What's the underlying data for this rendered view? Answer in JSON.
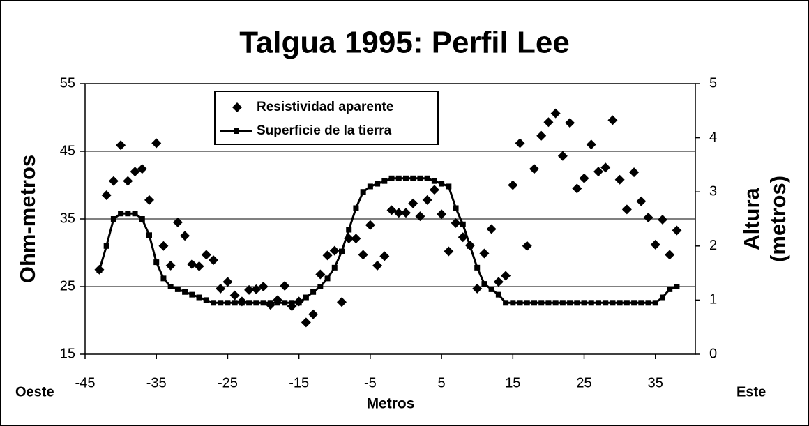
{
  "chart_data": {
    "type": "scatter-line",
    "title": "Talgua 1995: Perfil Lee",
    "x_label": "Metros",
    "y_label": "Ohm-metros",
    "y2_label": "Altura (metros)",
    "annotations": [
      "Oeste",
      "Este"
    ],
    "xlim": [
      -45,
      40.6
    ],
    "xticks": [
      -45,
      -35,
      -25,
      -15,
      -5,
      5,
      15,
      25,
      35
    ],
    "ylim": [
      15,
      55
    ],
    "yticks": [
      15,
      25,
      35,
      45,
      55
    ],
    "y2lim": [
      0,
      5
    ],
    "y2ticks": [
      0,
      1,
      2,
      3,
      4,
      5
    ],
    "grid": true,
    "legend": "top",
    "x": [
      -43,
      -42,
      -41,
      -40,
      -39,
      -38,
      -37,
      -36,
      -35,
      -34,
      -33,
      -32,
      -31,
      -30,
      -29,
      -28,
      -27,
      -26,
      -25,
      -24,
      -23,
      -22,
      -21,
      -20,
      -19,
      -18,
      -17,
      -16,
      -15,
      -14,
      -13,
      -12,
      -11,
      -10,
      -9,
      -8,
      -7,
      -6,
      -5,
      -4,
      -3,
      -2,
      -1,
      0,
      1,
      2,
      3,
      4,
      5,
      6,
      7,
      8,
      9,
      10,
      11,
      12,
      13,
      14,
      15,
      16,
      17,
      18,
      19,
      20,
      21,
      22,
      23,
      24,
      25,
      26,
      27,
      28,
      29,
      30,
      31,
      32,
      33,
      34,
      35,
      36,
      37,
      38
    ],
    "series": [
      {
        "name": "Resistividad aparente",
        "color": "#000000",
        "kind": "scatter",
        "values": [
          27.5,
          38.5,
          40.6,
          45.9,
          40.6,
          42,
          42.4,
          37.8,
          46.2,
          31,
          28.1,
          34.5,
          32.5,
          28.3,
          28,
          29.7,
          28.9,
          24.7,
          25.7,
          23.7,
          22.8,
          24.5,
          24.6,
          25,
          22.3,
          23,
          25.1,
          22.1,
          22.8,
          19.7,
          20.9,
          26.8,
          29.6,
          30.3,
          22.7,
          32.1,
          32.1,
          29.7,
          34.1,
          28.1,
          29.5,
          36.3,
          35.9,
          35.9,
          37.3,
          35.4,
          37.8,
          39.3,
          35.7,
          30.2,
          34.4,
          32.3,
          31.1,
          24.7,
          29.9,
          33.5,
          25.7,
          26.6,
          40,
          46.2,
          31,
          42.4,
          47.3,
          49.3,
          50.6,
          44.3,
          49.2,
          39.5,
          41,
          46,
          42,
          42.6,
          49.6,
          40.8,
          36.4,
          41.9,
          37.6,
          35.2,
          31.2,
          34.9,
          29.7,
          33.3
        ]
      },
      {
        "name": "Superficie de la tierra",
        "color": "#000000",
        "kind": "line",
        "axis": "y2",
        "values": [
          1.55,
          2.0,
          2.5,
          2.6,
          2.6,
          2.6,
          2.5,
          2.2,
          1.7,
          1.4,
          1.25,
          1.2,
          1.15,
          1.1,
          1.05,
          1.0,
          0.95,
          0.95,
          0.95,
          0.95,
          0.95,
          0.95,
          0.95,
          0.95,
          0.95,
          0.95,
          0.95,
          0.95,
          0.95,
          1.05,
          1.15,
          1.25,
          1.4,
          1.6,
          1.9,
          2.3,
          2.7,
          3.0,
          3.1,
          3.15,
          3.2,
          3.25,
          3.25,
          3.25,
          3.25,
          3.25,
          3.25,
          3.2,
          3.15,
          3.1,
          2.7,
          2.4,
          2.0,
          1.6,
          1.3,
          1.2,
          1.1,
          0.95,
          0.95,
          0.95,
          0.95,
          0.95,
          0.95,
          0.95,
          0.95,
          0.95,
          0.95,
          0.95,
          0.95,
          0.95,
          0.95,
          0.95,
          0.95,
          0.95,
          0.95,
          0.95,
          0.95,
          0.95,
          0.95,
          1.05,
          1.2,
          1.25
        ]
      }
    ]
  }
}
